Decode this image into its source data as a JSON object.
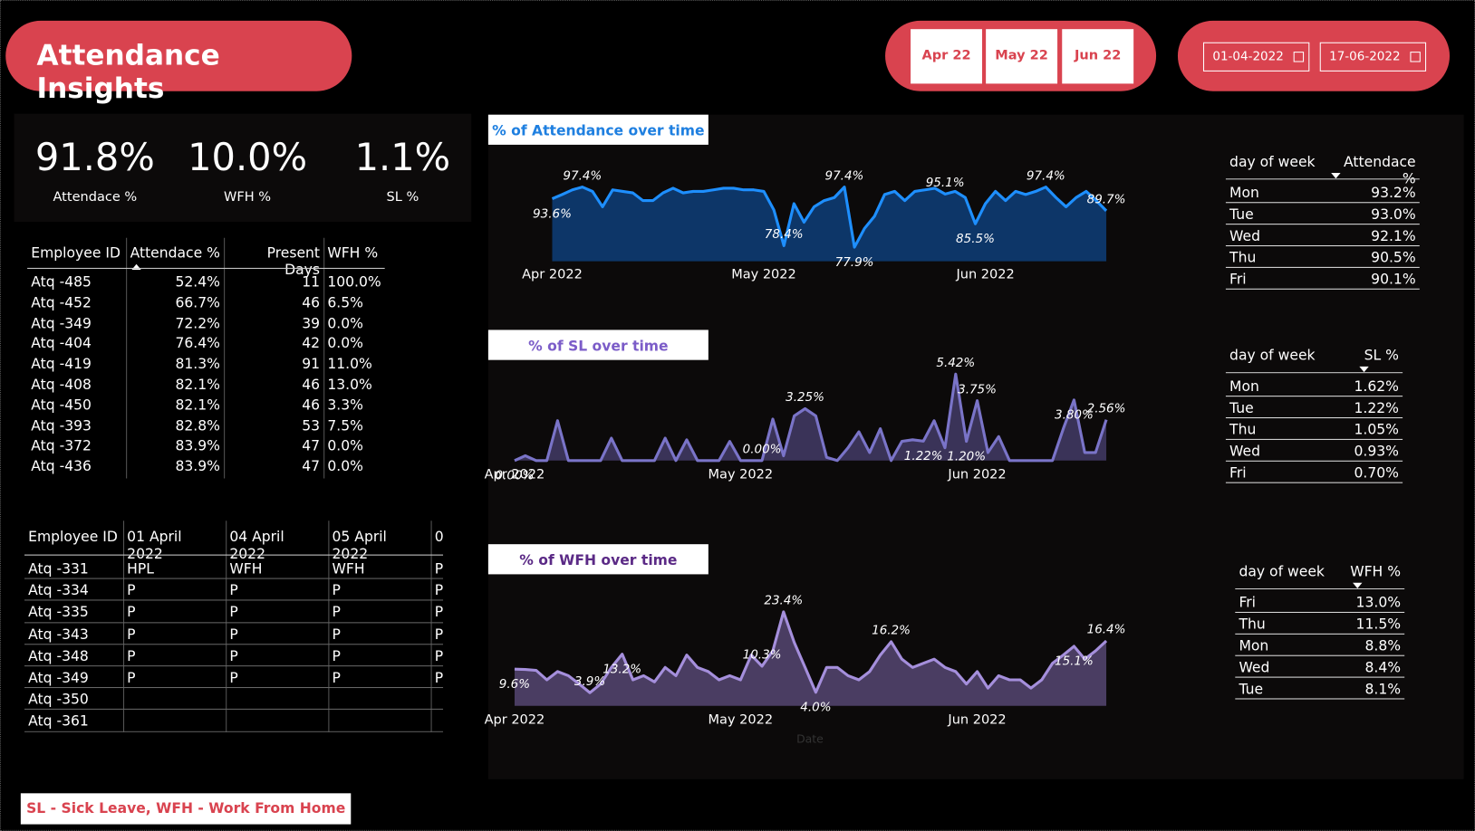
{
  "header": {
    "title": "Attendance Insights",
    "months": [
      "Apr 22",
      "May 22",
      "Jun 22"
    ],
    "dates": [
      "01-04-2022",
      "17-06-2022"
    ]
  },
  "kpis": [
    {
      "value": "91.8%",
      "label": "Attendace %"
    },
    {
      "value": "10.0%",
      "label": "WFH %"
    },
    {
      "value": "1.1%",
      "label": "SL %"
    }
  ],
  "employee_table": {
    "header": [
      "Employee ID",
      "Attendace %",
      "Present Days",
      "WFH %"
    ],
    "rows": [
      [
        "Atq -485",
        "52.4%",
        "11",
        "100.0%"
      ],
      [
        "Atq -452",
        "66.7%",
        "46",
        "6.5%"
      ],
      [
        "Atq -349",
        "72.2%",
        "39",
        "0.0%"
      ],
      [
        "Atq -404",
        "76.4%",
        "42",
        "0.0%"
      ],
      [
        "Atq -419",
        "81.3%",
        "91",
        "11.0%"
      ],
      [
        "Atq -408",
        "82.1%",
        "46",
        "13.0%"
      ],
      [
        "Atq -450",
        "82.1%",
        "46",
        "3.3%"
      ],
      [
        "Atq -393",
        "82.8%",
        "53",
        "7.5%"
      ],
      [
        "Atq -372",
        "83.9%",
        "47",
        "0.0%"
      ],
      [
        "Atq -436",
        "83.9%",
        "47",
        "0.0%"
      ]
    ]
  },
  "daily_table": {
    "header": [
      "Employee ID",
      "01 April 2022",
      "04 April 2022",
      "05 April 2022",
      "0"
    ],
    "rows": [
      [
        "Atq -331",
        "HPL",
        "WFH",
        "WFH",
        "P"
      ],
      [
        "Atq -334",
        "P",
        "P",
        "P",
        "P"
      ],
      [
        "Atq -335",
        "P",
        "P",
        "P",
        "P"
      ],
      [
        "Atq -343",
        "P",
        "P",
        "P",
        "P"
      ],
      [
        "Atq -348",
        "P",
        "P",
        "P",
        "P"
      ],
      [
        "Atq -349",
        "P",
        "P",
        "P",
        "P"
      ],
      [
        "Atq -350",
        null,
        null,
        null,
        null
      ],
      [
        "Atq -361",
        null,
        null,
        null,
        null
      ]
    ]
  },
  "dow_tables": [
    {
      "header": [
        "day of week",
        "Attendace %"
      ],
      "rows": [
        [
          "Mon",
          "93.2%"
        ],
        [
          "Tue",
          "93.0%"
        ],
        [
          "Wed",
          "92.1%"
        ],
        [
          "Thu",
          "90.5%"
        ],
        [
          "Fri",
          "90.1%"
        ]
      ]
    },
    {
      "header": [
        "day of week",
        "SL %"
      ],
      "rows": [
        [
          "Mon",
          "1.62%"
        ],
        [
          "Tue",
          "1.22%"
        ],
        [
          "Thu",
          "1.05%"
        ],
        [
          "Wed",
          "0.93%"
        ],
        [
          "Fri",
          "0.70%"
        ]
      ]
    },
    {
      "header": [
        "day of week",
        "WFH %"
      ],
      "rows": [
        [
          "Fri",
          "13.0%"
        ],
        [
          "Thu",
          "11.5%"
        ],
        [
          "Mon",
          "8.8%"
        ],
        [
          "Wed",
          "8.4%"
        ],
        [
          "Tue",
          "8.1%"
        ]
      ]
    }
  ],
  "chart_data": [
    {
      "type": "area",
      "title": "% of Attendance over time",
      "color": "#1e8fff",
      "categories": [
        "Apr 2022",
        null,
        null,
        null,
        null,
        null,
        null,
        null,
        null,
        null,
        null,
        null,
        null,
        null,
        null,
        null,
        null,
        null,
        null,
        null,
        null,
        "May 2022",
        null,
        null,
        null,
        null,
        null,
        null,
        null,
        null,
        null,
        null,
        null,
        null,
        null,
        null,
        null,
        null,
        null,
        null,
        null,
        null,
        null,
        "Jun 2022",
        null,
        null,
        null,
        null,
        null,
        null,
        null,
        null,
        null,
        null,
        null,
        null
      ],
      "values": [
        93.6,
        95,
        96.5,
        97.4,
        96,
        91,
        96.5,
        96,
        95.5,
        93,
        93,
        95.5,
        97,
        95.5,
        96,
        96,
        96.5,
        97,
        97,
        96.5,
        96.5,
        96,
        90,
        78.4,
        92,
        86,
        91,
        93,
        94,
        97.4,
        77.9,
        84,
        88,
        95,
        96,
        93,
        96,
        96.5,
        97,
        95.1,
        96,
        94,
        85.5,
        92,
        96,
        93,
        96,
        95,
        96,
        97.4,
        94,
        91,
        94,
        96,
        93,
        89.7
      ],
      "value_labels": [
        "93.6%",
        null,
        null,
        "97.4%",
        null,
        null,
        null,
        null,
        null,
        null,
        null,
        null,
        null,
        null,
        null,
        null,
        null,
        null,
        null,
        null,
        null,
        null,
        null,
        "78.4%",
        null,
        null,
        null,
        null,
        null,
        "97.4%",
        "77.9%",
        null,
        null,
        null,
        null,
        null,
        null,
        null,
        null,
        "95.1%",
        null,
        null,
        "85.5%",
        null,
        null,
        null,
        null,
        null,
        null,
        "97.4%",
        null,
        null,
        null,
        null,
        null,
        "89.7%"
      ]
    },
    {
      "type": "area",
      "title": "% of SL over time",
      "color": "#7a74c8",
      "categories": [
        "Apr 2022",
        null,
        null,
        null,
        null,
        null,
        null,
        null,
        null,
        null,
        null,
        null,
        null,
        null,
        null,
        null,
        null,
        null,
        null,
        null,
        null,
        "May 2022",
        null,
        null,
        null,
        null,
        null,
        null,
        null,
        null,
        null,
        null,
        null,
        null,
        null,
        null,
        null,
        null,
        null,
        null,
        null,
        null,
        null,
        "Jun 2022",
        null,
        null,
        null,
        null,
        null,
        null,
        null,
        null,
        null,
        null,
        null,
        null
      ],
      "values": [
        0,
        0.3,
        0,
        0,
        2.5,
        0,
        0,
        0,
        0,
        1.4,
        0,
        0,
        0,
        0,
        1.4,
        0,
        1.3,
        0,
        0,
        0,
        1.2,
        0,
        0,
        0,
        2.6,
        0.3,
        2.8,
        3.25,
        2.8,
        0.2,
        0,
        0.8,
        1.8,
        0.5,
        2.0,
        0,
        1.2,
        1.3,
        1.22,
        2.5,
        0.8,
        5.42,
        1.2,
        3.75,
        0.5,
        1.5,
        0,
        0,
        0,
        0,
        0,
        2.0,
        3.8,
        0.5,
        0.5,
        2.56
      ],
      "value_labels": [
        "0.00%",
        null,
        null,
        null,
        null,
        null,
        null,
        null,
        null,
        null,
        null,
        null,
        null,
        null,
        null,
        null,
        null,
        null,
        null,
        null,
        null,
        null,
        null,
        "0.00%",
        null,
        null,
        null,
        "3.25%",
        null,
        null,
        null,
        null,
        null,
        null,
        null,
        null,
        null,
        null,
        "1.22%",
        null,
        null,
        "5.42%",
        "1.20%",
        "3.75%",
        null,
        null,
        null,
        null,
        null,
        null,
        null,
        null,
        "3.80%",
        null,
        null,
        "2.56%"
      ]
    },
    {
      "type": "area",
      "title": "% of WFH over time",
      "color": "#a58fdc",
      "x_label": "Date",
      "categories": [
        "Apr 2022",
        null,
        null,
        null,
        null,
        null,
        null,
        null,
        null,
        null,
        null,
        null,
        null,
        null,
        null,
        null,
        null,
        null,
        null,
        null,
        null,
        "May 2022",
        null,
        null,
        null,
        null,
        null,
        null,
        null,
        null,
        null,
        null,
        null,
        null,
        null,
        null,
        null,
        null,
        null,
        null,
        null,
        null,
        null,
        "Jun 2022",
        null,
        null,
        null,
        null,
        null,
        null,
        null,
        null,
        null,
        null,
        null,
        null
      ],
      "values": [
        9.6,
        9.5,
        9.3,
        7,
        9,
        8,
        6,
        3.9,
        6,
        10,
        13.2,
        7,
        8,
        6.5,
        10,
        8,
        13,
        10,
        9,
        7,
        8,
        7,
        13,
        10.3,
        14,
        23.4,
        16,
        10,
        4.0,
        10,
        10,
        8,
        7,
        9,
        13,
        16.2,
        12,
        10,
        11,
        12,
        10,
        9,
        6,
        9,
        5,
        8,
        7,
        7,
        5,
        7,
        11,
        13,
        15.1,
        12,
        14,
        16.4
      ],
      "value_labels": [
        "9.6%",
        null,
        null,
        null,
        null,
        null,
        null,
        "3.9%",
        null,
        null,
        "13.2%",
        null,
        null,
        null,
        null,
        null,
        null,
        null,
        null,
        null,
        null,
        null,
        null,
        "10.3%",
        null,
        "23.4%",
        null,
        null,
        "4.0%",
        null,
        null,
        null,
        null,
        null,
        null,
        "16.2%",
        null,
        null,
        null,
        null,
        null,
        null,
        null,
        null,
        null,
        null,
        null,
        null,
        null,
        null,
        null,
        null,
        "15.1%",
        null,
        null,
        "16.4%"
      ]
    }
  ],
  "footer": "SL - Sick Leave, WFH - Work From Home"
}
